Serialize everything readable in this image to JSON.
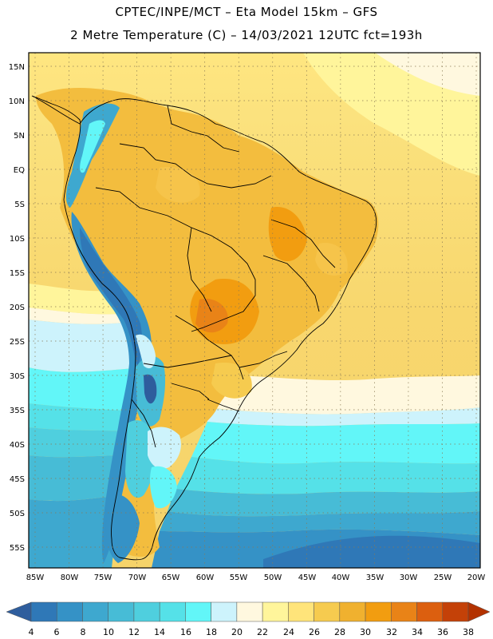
{
  "title": {
    "line1": "CPTEC/INPE/MCT –  Eta Model 15km – GFS",
    "line2": "2 Metre Temperature (C) – 14/03/2021 12UTC fct=193h"
  },
  "map": {
    "lat_labels": [
      "15N",
      "10N",
      "5N",
      "EQ",
      "5S",
      "10S",
      "15S",
      "20S",
      "25S",
      "30S",
      "35S",
      "40S",
      "45S",
      "50S",
      "55S"
    ],
    "lon_labels": [
      "85W",
      "80W",
      "75W",
      "70W",
      "65W",
      "60W",
      "55W",
      "50W",
      "45W",
      "40W",
      "35W",
      "30W",
      "25W",
      "20W"
    ]
  },
  "legend": {
    "values": [
      "4",
      "6",
      "8",
      "10",
      "12",
      "14",
      "16",
      "18",
      "20",
      "22",
      "24",
      "26",
      "28",
      "30",
      "32",
      "34",
      "36",
      "38"
    ],
    "colors": [
      "#2e5d9d",
      "#2f78b7",
      "#3592c6",
      "#3ea8cf",
      "#47bcd6",
      "#4fcfde",
      "#55e1e8",
      "#62f6f8",
      "#cdf3fc",
      "#fff8df",
      "#fff59b",
      "#ffe47a",
      "#f6cb4f",
      "#f0b12f",
      "#f29d10",
      "#e98317",
      "#dc5f0f",
      "#c44108",
      "#b33200"
    ]
  }
}
